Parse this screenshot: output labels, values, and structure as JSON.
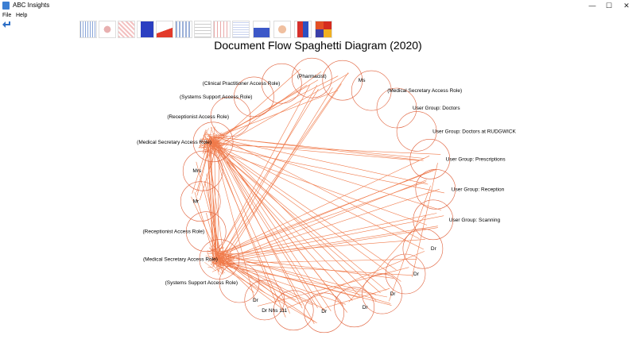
{
  "window": {
    "title": "ABC Insights",
    "minimize_glyph": "—",
    "maximize_glyph": "☐",
    "close_glyph": "✕"
  },
  "menu": {
    "file": "File",
    "help": "Help"
  },
  "toolbar": {
    "back_icon": "back-arrow-icon",
    "thumbnails": [
      {
        "name": "bar-chart-thumbnail"
      },
      {
        "name": "scatter-thumbnail"
      },
      {
        "name": "red-scatter-thumbnail"
      },
      {
        "name": "blue-bar-thumbnail"
      },
      {
        "name": "red-area-thumbnail"
      },
      {
        "name": "stacked-bar-thumbnail"
      },
      {
        "name": "timeline-thumbnail"
      },
      {
        "name": "network-thumbnail"
      },
      {
        "name": "tree-thumbnail"
      },
      {
        "name": "blue-area-thumbnail"
      },
      {
        "name": "circle-thumbnail"
      },
      {
        "name": "funnel-thumbnail"
      },
      {
        "name": "heatmap-thumbnail"
      }
    ]
  },
  "diagram": {
    "title": "Document Flow Spaghetti Diagram (2020)",
    "line_color": "#f07a4a",
    "circle_color": "#e0603a",
    "nodes": [
      {
        "label": "(Pharmacist)"
      },
      {
        "label": "Ms"
      },
      {
        "label": "(Medical Secretary Access Role)"
      },
      {
        "label": "User Group: Doctors"
      },
      {
        "label": "User Group: Doctors at  RUDGWICK"
      },
      {
        "label": "User Group: Prescriptions"
      },
      {
        "label": "User Group: Reception"
      },
      {
        "label": "User Group: Scanning"
      },
      {
        "label": "Dr"
      },
      {
        "label": "Dr"
      },
      {
        "label": "Dr"
      },
      {
        "label": "Dr"
      },
      {
        "label": "Dr"
      },
      {
        "label": "Dr Nhs 111"
      },
      {
        "label": "Dr"
      },
      {
        "label": "(Systems Support Access Role)"
      },
      {
        "label": "(Medical Secretary Access Role)"
      },
      {
        "label": "(Receptionist Access Role)"
      },
      {
        "label": "Mr"
      },
      {
        "label": "Mrs"
      },
      {
        "label": "(Medical Secretary Access Role)"
      },
      {
        "label": "(Receptionist Access Role)"
      },
      {
        "label": "(Systems Support Access Role)"
      },
      {
        "label": "(Clinical Practitioner Access Role)"
      }
    ]
  }
}
